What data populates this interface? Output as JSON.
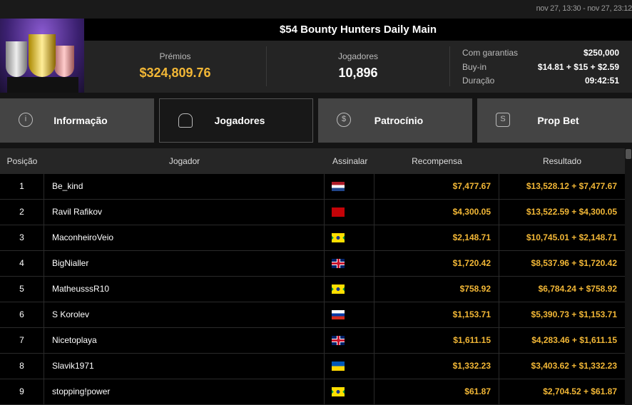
{
  "header": {
    "date_range": "nov 27, 13:30 - nov 27, 23:12",
    "title": "$54 Bounty Hunters Daily Main"
  },
  "stats": {
    "prizes_label": "Prémios",
    "prizes_value": "$324,809.76",
    "players_label": "Jogadores",
    "players_value": "10,896",
    "guarantee_label": "Com garantias",
    "guarantee_value": "$250,000",
    "buyin_label": "Buy-in",
    "buyin_value": "$14.81 + $15 + $2.59",
    "duration_label": "Duração",
    "duration_value": "09:42:51"
  },
  "tabs": [
    {
      "label": "Informação",
      "icon": "info-icon"
    },
    {
      "label": "Jogadores",
      "icon": "user-icon",
      "active": true
    },
    {
      "label": "Patrocínio",
      "icon": "dollar-icon"
    },
    {
      "label": "Prop Bet",
      "icon": "prop-bet-icon"
    }
  ],
  "table": {
    "columns": [
      "Posição",
      "Jogador",
      "Assinalar",
      "Recompensa",
      "Resultado"
    ],
    "rows": [
      {
        "pos": "1",
        "player": "Be_kind",
        "flag": "nl",
        "reward": "$7,477.67",
        "result": "$13,528.12 + $7,477.67"
      },
      {
        "pos": "2",
        "player": "Ravil Rafikov",
        "flag": "me",
        "reward": "$4,300.05",
        "result": "$13,522.59 + $4,300.05"
      },
      {
        "pos": "3",
        "player": "MaconheiroVeio",
        "flag": "br",
        "reward": "$2,148.71",
        "result": "$10,745.01 + $2,148.71"
      },
      {
        "pos": "4",
        "player": "BigNialler",
        "flag": "gb",
        "reward": "$1,720.42",
        "result": "$8,537.96 + $1,720.42"
      },
      {
        "pos": "5",
        "player": "MatheusssR10",
        "flag": "br",
        "reward": "$758.92",
        "result": "$6,784.24 + $758.92"
      },
      {
        "pos": "6",
        "player": "S Korolev",
        "flag": "ru",
        "reward": "$1,153.71",
        "result": "$5,390.73 + $1,153.71"
      },
      {
        "pos": "7",
        "player": "Nicetoplaya",
        "flag": "gb",
        "reward": "$1,611.15",
        "result": "$4,283.46 + $1,611.15"
      },
      {
        "pos": "8",
        "player": "Slavik1971",
        "flag": "ua",
        "reward": "$1,332.23",
        "result": "$3,403.62 + $1,332.23"
      },
      {
        "pos": "9",
        "player": "stopping!power",
        "flag": "br",
        "reward": "$61.87",
        "result": "$2,704.52 + $61.87"
      }
    ]
  },
  "colors": {
    "accent": "#f2b736"
  }
}
